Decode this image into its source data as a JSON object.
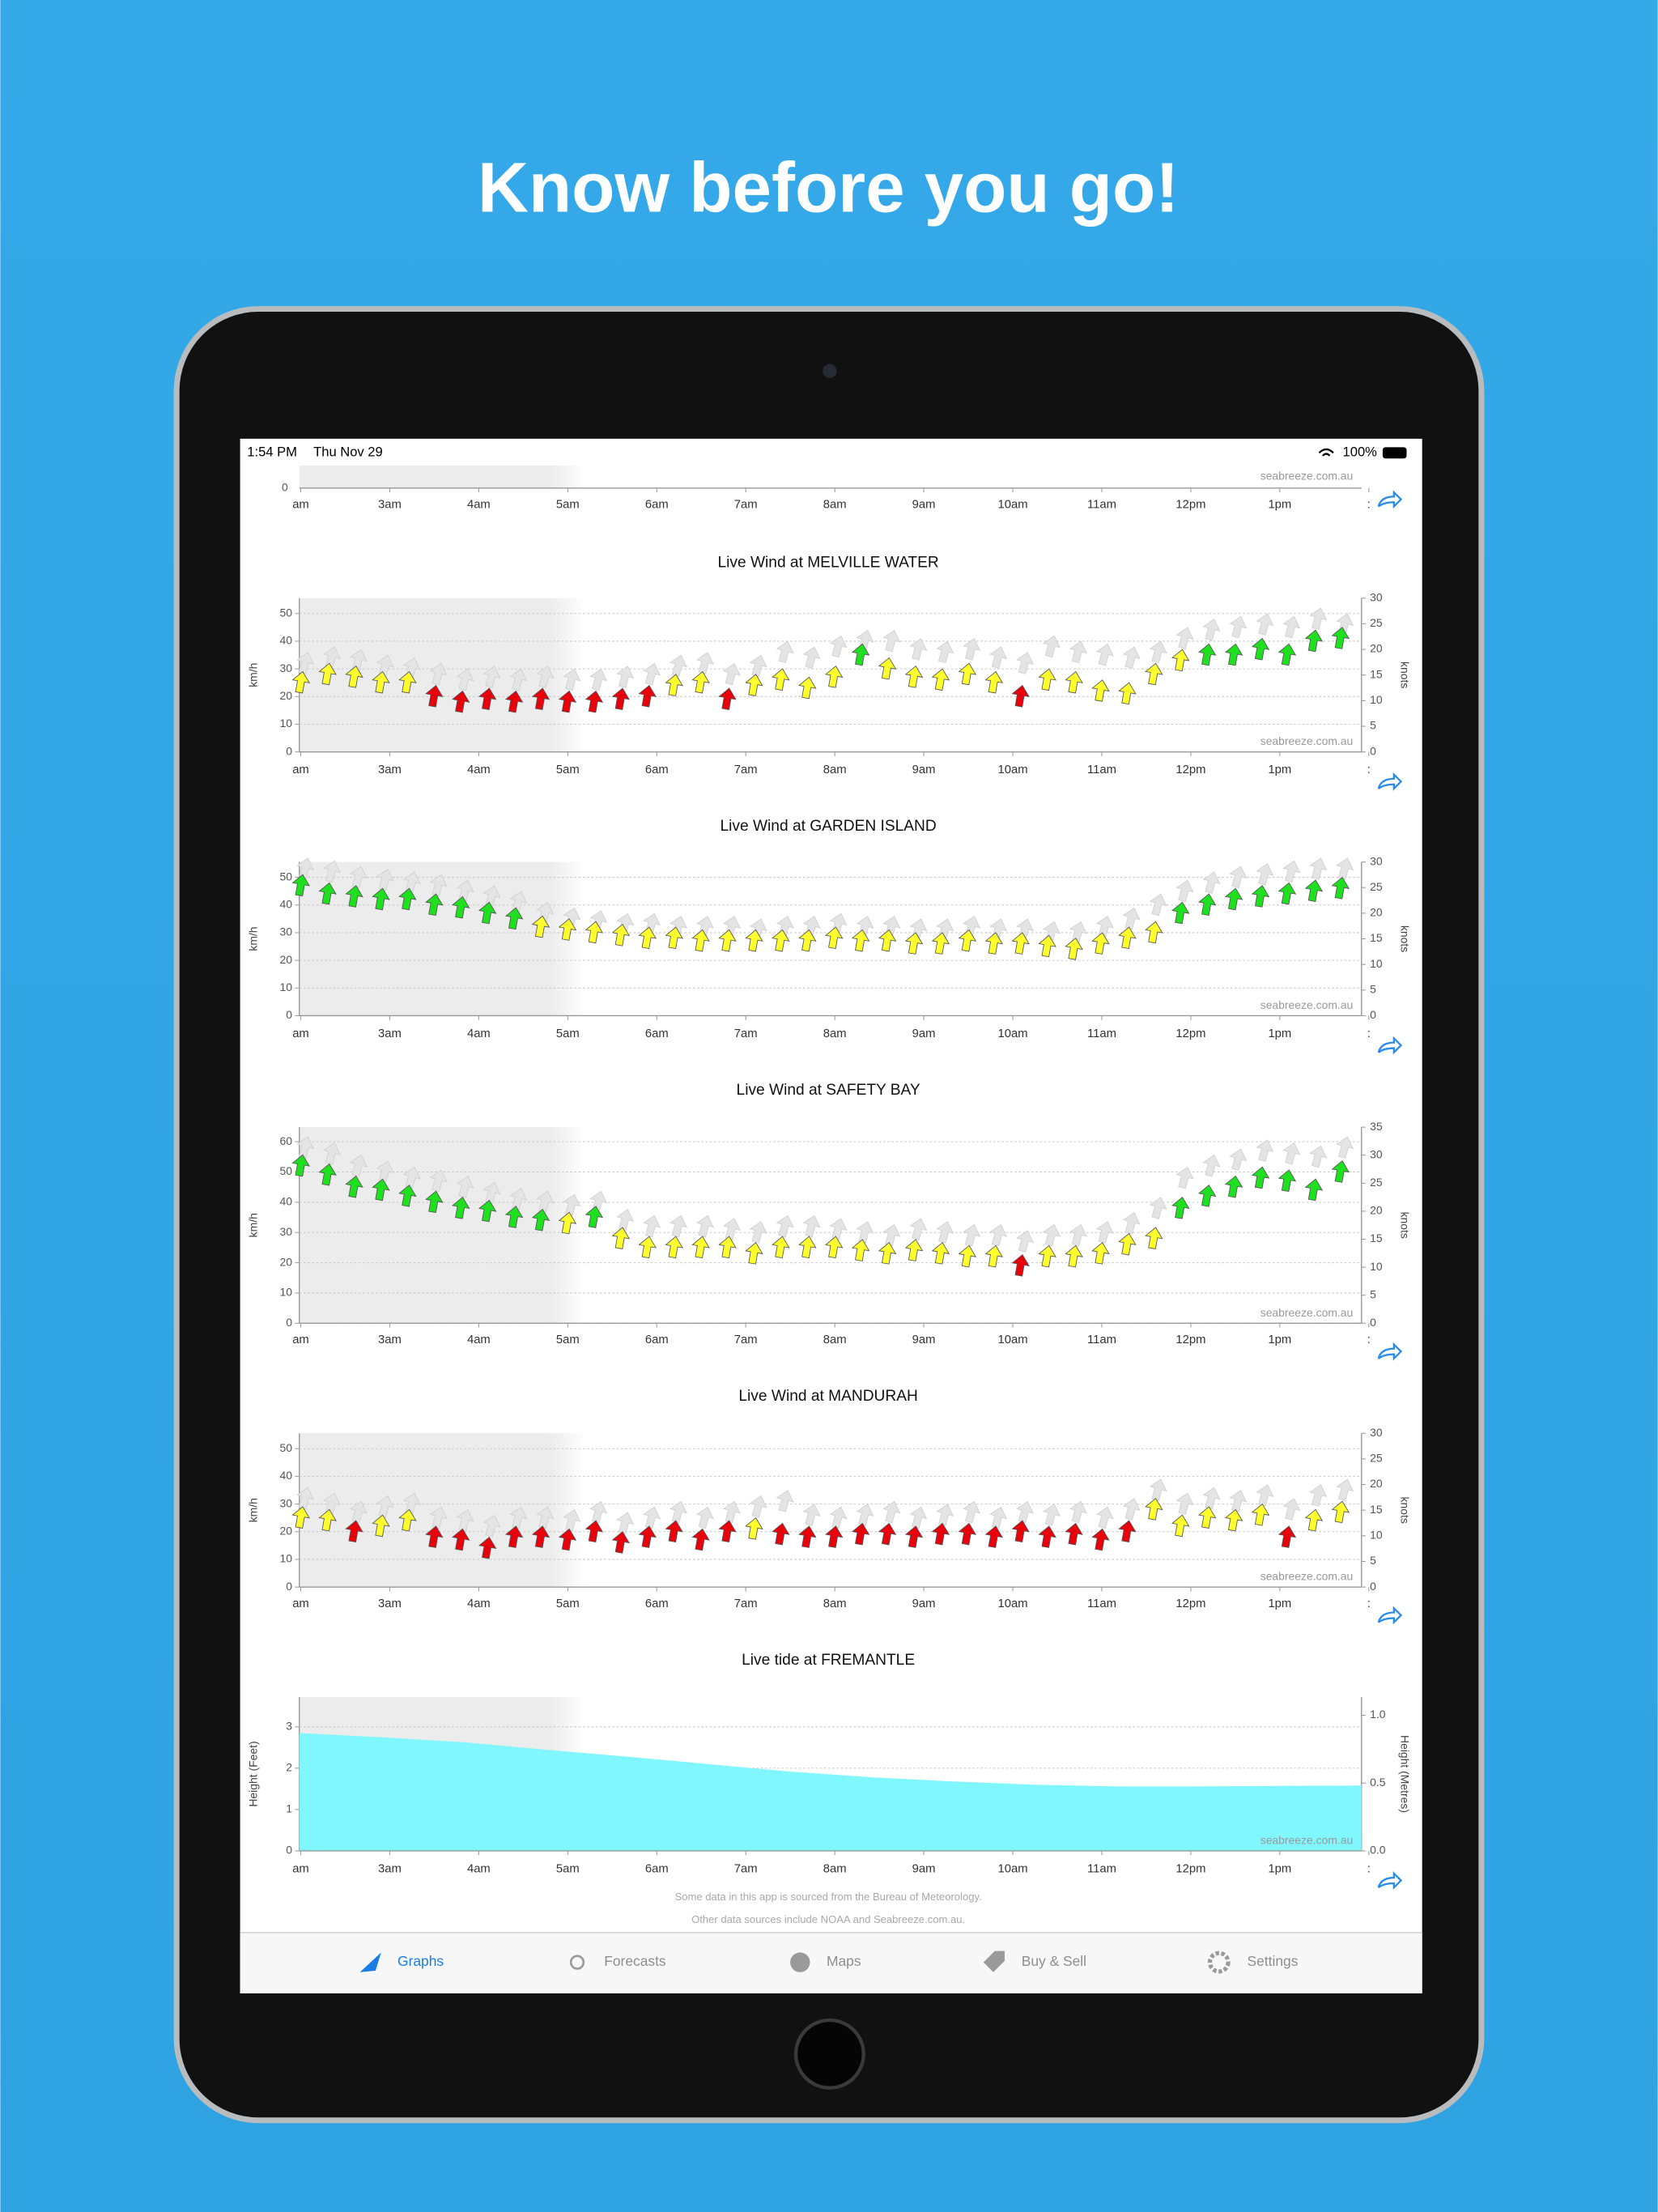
{
  "header": {
    "title": "Know before you go!"
  },
  "status_bar": {
    "time": "1:54 PM",
    "date": "Thu Nov 29",
    "battery": "100%"
  },
  "time_labels": [
    "am",
    "3am",
    "4am",
    "5am",
    "6am",
    "7am",
    "8am",
    "9am",
    "10am",
    "11am",
    "12pm",
    "1pm",
    ":"
  ],
  "watermark": "seabreeze.com.au",
  "partial_chart": {
    "yticks": [
      0
    ]
  },
  "wind_colors": {
    "thresholds": [
      21,
      34
    ],
    "colors": [
      "#e8000b",
      "#ffff2e",
      "#1fe01f"
    ],
    "gust_color": "#e4e4e4"
  },
  "charts": [
    {
      "type": "wind",
      "title": "Live Wind at MELVILLE WATER",
      "ylabel": "km/h",
      "y2label": "knots",
      "ylim": [
        0,
        55.56
      ],
      "yticks": [
        0,
        10,
        20,
        30,
        40,
        50
      ],
      "y2lim": [
        0,
        30
      ],
      "y2ticks": [
        0,
        5,
        10,
        15,
        20,
        25,
        30
      ],
      "values": [
        25,
        28,
        27,
        25,
        25,
        20,
        18,
        19,
        18,
        19,
        18,
        18,
        19,
        20,
        24,
        25,
        19,
        24,
        26,
        23,
        27,
        35,
        30,
        27,
        26,
        28,
        25,
        20,
        26,
        25,
        22,
        21,
        28,
        33,
        35,
        35,
        37,
        35,
        40,
        41
      ],
      "gusts": [
        32,
        34,
        33,
        31,
        30,
        28,
        26,
        27,
        26,
        27,
        26,
        26,
        27,
        28,
        31,
        32,
        28,
        31,
        36,
        34,
        38,
        40,
        40,
        37,
        36,
        37,
        34,
        32,
        38,
        36,
        35,
        34,
        36,
        41,
        44,
        45,
        46,
        45,
        48,
        46
      ]
    },
    {
      "type": "wind",
      "title": "Live Wind at GARDEN ISLAND",
      "ylabel": "km/h",
      "y2label": "knots",
      "ylim": [
        0,
        55.56
      ],
      "yticks": [
        0,
        10,
        20,
        30,
        40,
        50
      ],
      "y2lim": [
        0,
        30
      ],
      "y2ticks": [
        0,
        5,
        10,
        15,
        20,
        25,
        30
      ],
      "values": [
        47,
        44,
        43,
        42,
        42,
        40,
        39,
        37,
        35,
        32,
        31,
        30,
        29,
        28,
        28,
        27,
        27,
        27,
        27,
        27,
        28,
        27,
        27,
        26,
        26,
        27,
        26,
        26,
        25,
        24,
        26,
        28,
        30,
        37,
        40,
        42,
        43,
        44,
        45,
        46
      ],
      "gusts": [
        53,
        52,
        50,
        49,
        48,
        47,
        45,
        43,
        41,
        37,
        35,
        34,
        33,
        33,
        32,
        32,
        32,
        31,
        32,
        32,
        33,
        32,
        32,
        31,
        31,
        32,
        31,
        31,
        30,
        30,
        32,
        35,
        40,
        45,
        48,
        50,
        51,
        52,
        53,
        53
      ]
    },
    {
      "type": "wind",
      "title": "Live Wind at SAFETY BAY",
      "ylabel": "km/h",
      "y2label": "knots",
      "ylim": [
        0,
        64.82
      ],
      "yticks": [
        0,
        10,
        20,
        30,
        40,
        50,
        60
      ],
      "y2lim": [
        0,
        35
      ],
      "y2ticks": [
        0,
        5,
        10,
        15,
        20,
        25,
        30,
        35
      ],
      "values": [
        52,
        49,
        45,
        44,
        42,
        40,
        38,
        37,
        35,
        34,
        33,
        35,
        28,
        25,
        25,
        25,
        25,
        23,
        25,
        25,
        25,
        24,
        23,
        24,
        23,
        22,
        22,
        19,
        22,
        22,
        23,
        26,
        28,
        38,
        42,
        45,
        48,
        47,
        44,
        50
      ],
      "gusts": [
        58,
        56,
        52,
        50,
        48,
        47,
        45,
        43,
        41,
        40,
        39,
        40,
        34,
        32,
        32,
        32,
        31,
        30,
        32,
        32,
        31,
        30,
        29,
        31,
        30,
        29,
        29,
        27,
        29,
        29,
        30,
        33,
        38,
        48,
        52,
        54,
        57,
        56,
        55,
        58
      ]
    },
    {
      "type": "wind",
      "title": "Live Wind at MANDURAH",
      "ylabel": "km/h",
      "y2label": "knots",
      "ylim": [
        0,
        55.56
      ],
      "yticks": [
        0,
        10,
        20,
        30,
        40,
        50
      ],
      "y2lim": [
        0,
        30
      ],
      "y2ticks": [
        0,
        5,
        10,
        15,
        20,
        25,
        30
      ],
      "values": [
        25,
        24,
        20,
        22,
        24,
        18,
        17,
        14,
        18,
        18,
        17,
        20,
        16,
        18,
        20,
        17,
        20,
        21,
        19,
        18,
        18,
        19,
        19,
        18,
        19,
        19,
        18,
        20,
        18,
        19,
        17,
        20,
        28,
        22,
        25,
        24,
        26,
        18,
        24,
        27
      ],
      "gusts": [
        32,
        30,
        27,
        29,
        30,
        25,
        24,
        22,
        25,
        25,
        24,
        27,
        23,
        25,
        27,
        25,
        27,
        29,
        31,
        26,
        25,
        26,
        27,
        25,
        26,
        27,
        25,
        27,
        26,
        27,
        25,
        28,
        35,
        30,
        32,
        31,
        33,
        28,
        33,
        35
      ]
    },
    {
      "type": "area",
      "title": "Live tide at FREMANTLE",
      "ylabel": "Height (Feet)",
      "y2label": "Height (Metres)",
      "ylim": [
        0,
        3.72
      ],
      "yticks": [
        0,
        1,
        2,
        3
      ],
      "y2lim": [
        0,
        1.134
      ],
      "y2ticks": [
        {
          "value": 0,
          "label": "0.0"
        },
        {
          "value": 0.5,
          "label": "0.5"
        },
        {
          "value": 1,
          "label": "1.0"
        }
      ],
      "color": "#80f7ff",
      "values": [
        2.85,
        2.75,
        2.63,
        2.45,
        2.28,
        2.1,
        1.92,
        1.78,
        1.68,
        1.6,
        1.56,
        1.56,
        1.57,
        1.58
      ]
    }
  ],
  "footer": {
    "lines": [
      "Some data in this app is sourced from the Bureau of Meteorology.",
      "Other data sources include NOAA and Seabreeze.com.au."
    ]
  },
  "tabs": [
    "Graphs",
    "Forecasts",
    "Maps",
    "Buy & Sell",
    "Settings"
  ]
}
